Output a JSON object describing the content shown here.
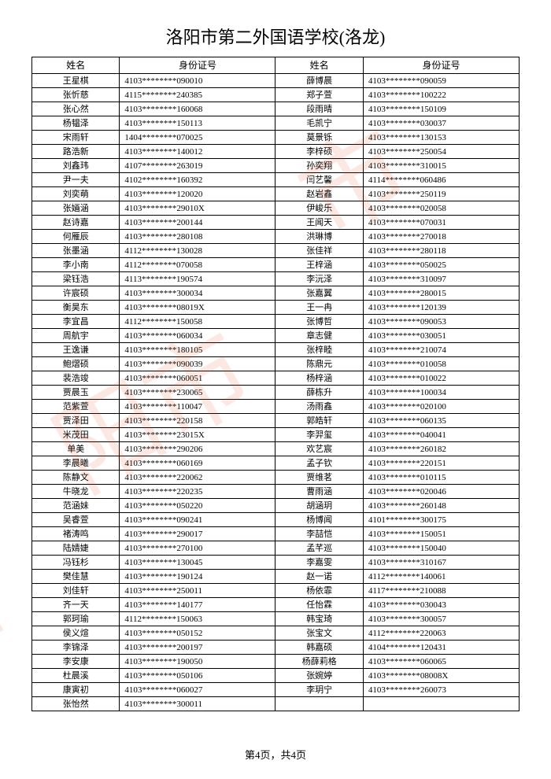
{
  "title": "洛阳市第二外国语学校(洛龙)",
  "headers": {
    "name": "姓名",
    "id": "身份证号"
  },
  "footer": "第4页，共4页",
  "watermark_color": "rgba(230,80,30,0.13)",
  "rows": [
    {
      "n1": "王星棋",
      "i1": "4103********090010",
      "n2": "薛博晨",
      "i2": "4103********090059"
    },
    {
      "n1": "张忻慈",
      "i1": "4115********240385",
      "n2": "郑子萱",
      "i2": "4103********100222"
    },
    {
      "n1": "张心然",
      "i1": "4103********160068",
      "n2": "段雨晴",
      "i2": "4103********150109"
    },
    {
      "n1": "杨韫泽",
      "i1": "4103********150113",
      "n2": "毛凯宁",
      "i2": "4103********030037"
    },
    {
      "n1": "宋雨轩",
      "i1": "1404********070025",
      "n2": "莫景铄",
      "i2": "4103********130153"
    },
    {
      "n1": "路浩新",
      "i1": "4103********140012",
      "n2": "李梓硕",
      "i2": "4103********250054"
    },
    {
      "n1": "刘鑫玮",
      "i1": "4107********263019",
      "n2": "孙奕翔",
      "i2": "4103********310015"
    },
    {
      "n1": "尹一夫",
      "i1": "4102********160392",
      "n2": "闫艺馨",
      "i2": "4114********060486"
    },
    {
      "n1": "刘奕萌",
      "i1": "4103********120020",
      "n2": "赵岩鑫",
      "i2": "4103********250119"
    },
    {
      "n1": "张婳涵",
      "i1": "4103********29010X",
      "n2": "伊峻乐",
      "i2": "4103********020058"
    },
    {
      "n1": "赵诗嘉",
      "i1": "4103********200144",
      "n2": "王闻天",
      "i2": "4103********070031"
    },
    {
      "n1": "何雁辰",
      "i1": "4103********280108",
      "n2": "洪琳博",
      "i2": "4103********270018"
    },
    {
      "n1": "张墨涵",
      "i1": "4112********130028",
      "n2": "张佳祥",
      "i2": "4103********280118"
    },
    {
      "n1": "李小南",
      "i1": "4112********070058",
      "n2": "王梓涵",
      "i2": "4103********050025"
    },
    {
      "n1": "梁钰浩",
      "i1": "4113********190574",
      "n2": "李沅泽",
      "i2": "4103********310097"
    },
    {
      "n1": "许宸硕",
      "i1": "4103********300034",
      "n2": "张嘉翼",
      "i2": "4103********280015"
    },
    {
      "n1": "衡昊东",
      "i1": "4103********08019X",
      "n2": "王一冉",
      "i2": "4103********120139"
    },
    {
      "n1": "李宜昌",
      "i1": "4112********150058",
      "n2": "张博哲",
      "i2": "4103********090053"
    },
    {
      "n1": "周航宇",
      "i1": "4103********060034",
      "n2": "章志健",
      "i2": "4103********030051"
    },
    {
      "n1": "王逸谦",
      "i1": "4103********180105",
      "n2": "张梓睦",
      "i2": "4103********210074"
    },
    {
      "n1": "鲍熠硕",
      "i1": "4103********090039",
      "n2": "陈鼎元",
      "i2": "4103********010058"
    },
    {
      "n1": "裴浩竣",
      "i1": "4103********060051",
      "n2": "杨梓涵",
      "i2": "4103********010022"
    },
    {
      "n1": "贾晨玉",
      "i1": "4103********230065",
      "n2": "薛栋升",
      "i2": "4103********100034"
    },
    {
      "n1": "范紫萱",
      "i1": "4103********110047",
      "n2": "汤雨鑫",
      "i2": "4103********020100"
    },
    {
      "n1": "贾泽田",
      "i1": "4103********220158",
      "n2": "郭皓轩",
      "i2": "4103********060135"
    },
    {
      "n1": "米茂田",
      "i1": "4103********23015X",
      "n2": "李羿玺",
      "i2": "4103********040041"
    },
    {
      "n1": "单美",
      "i1": "4103********290206",
      "n2": "欢艺宸",
      "i2": "4103********260182"
    },
    {
      "n1": "李晨曦",
      "i1": "4103********060169",
      "n2": "孟子钦",
      "i2": "4103********220151"
    },
    {
      "n1": "陈静文",
      "i1": "4103********220062",
      "n2": "贾维茗",
      "i2": "4103********010115"
    },
    {
      "n1": "牛晓龙",
      "i1": "4103********220235",
      "n2": "曹雨涵",
      "i2": "4103********020046"
    },
    {
      "n1": "范涵妹",
      "i1": "4103********050220",
      "n2": "胡涵玥",
      "i2": "4103********260148"
    },
    {
      "n1": "吴睿萱",
      "i1": "4103********090241",
      "n2": "杨博闻",
      "i2": "4101********300175"
    },
    {
      "n1": "褚涛鸣",
      "i1": "4103********290017",
      "n2": "李喆恺",
      "i2": "4103********150051"
    },
    {
      "n1": "陆婧婕",
      "i1": "4103********270100",
      "n2": "孟芊巡",
      "i2": "4103********150040"
    },
    {
      "n1": "冯钰杉",
      "i1": "4103********130045",
      "n2": "李嘉雯",
      "i2": "4103********310167"
    },
    {
      "n1": "樊佳慧",
      "i1": "4103********190124",
      "n2": "赵一诺",
      "i2": "4112********140061"
    },
    {
      "n1": "刘佳轩",
      "i1": "4103********250011",
      "n2": "杨依霏",
      "i2": "4117********210088"
    },
    {
      "n1": "齐一天",
      "i1": "4103********140177",
      "n2": "任怡霖",
      "i2": "4103********030043"
    },
    {
      "n1": "郭珂瑜",
      "i1": "4112********150063",
      "n2": "韩宝琦",
      "i2": "4103********300057"
    },
    {
      "n1": "侯义煊",
      "i1": "4103********050152",
      "n2": "张宝文",
      "i2": "4112********220063"
    },
    {
      "n1": "李锦泽",
      "i1": "4103********200197",
      "n2": "韩嘉硕",
      "i2": "4104********120431"
    },
    {
      "n1": "李安康",
      "i1": "4103********190050",
      "n2": "杨薛莉格",
      "i2": "4103********060065"
    },
    {
      "n1": "杜晨溪",
      "i1": "4103********050106",
      "n2": "张婉婷",
      "i2": "4103********08008X"
    },
    {
      "n1": "康寅初",
      "i1": "4103********060027",
      "n2": "李玥宁",
      "i2": "4103********260073"
    },
    {
      "n1": "张怡然",
      "i1": "4103********300011",
      "n2": "",
      "i2": ""
    }
  ]
}
